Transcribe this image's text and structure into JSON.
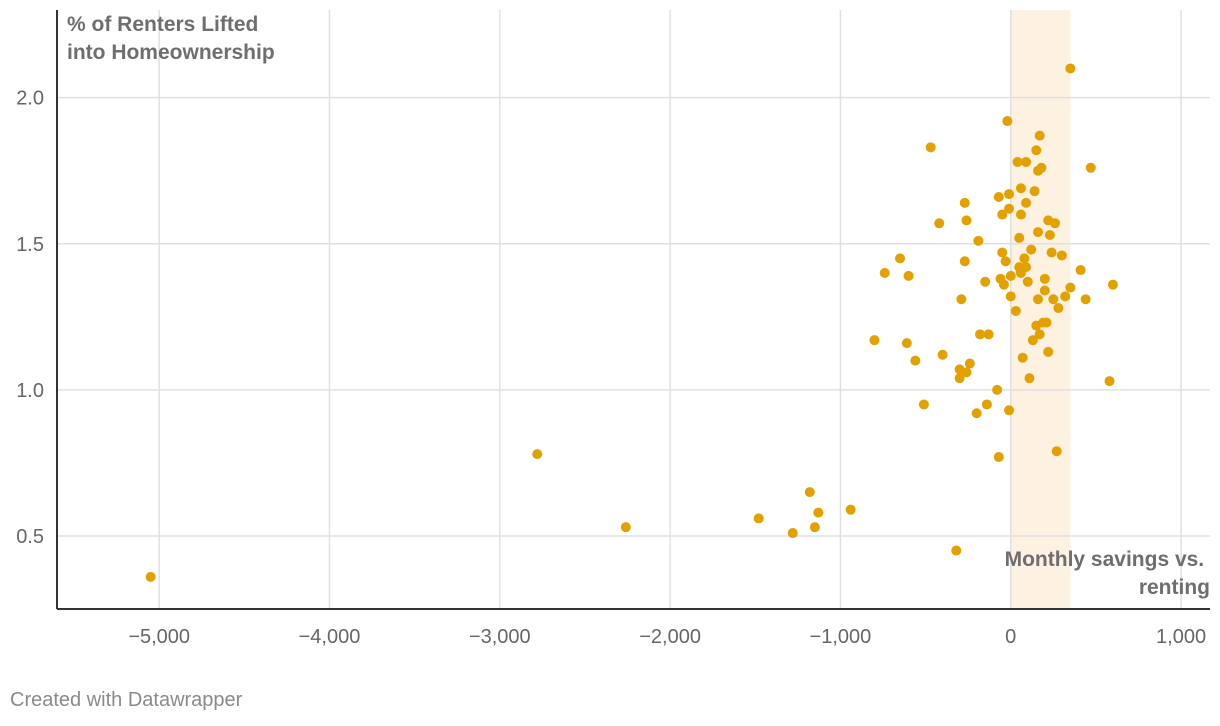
{
  "chart_data": {
    "type": "scatter",
    "ylabel": [
      "% of Renters Lifted",
      "into Homeownership"
    ],
    "xlabel": [
      "Monthly savings vs.",
      "renting"
    ],
    "xlim": [
      -5600,
      1170
    ],
    "ylim": [
      0.25,
      2.3
    ],
    "x_ticks": [
      -5000,
      -4000,
      -3000,
      -2000,
      -1000,
      0,
      1000
    ],
    "x_tick_labels": [
      "−5,000",
      "−4,000",
      "−3,000",
      "−2,000",
      "−1,000",
      "0",
      "1,000"
    ],
    "y_ticks": [
      0.5,
      1.0,
      1.5,
      2.0
    ],
    "y_tick_labels": [
      "0.5",
      "1.0",
      "1.5",
      "2.0"
    ],
    "grid": true,
    "highlight_band": {
      "x_from": 0,
      "x_to": 350
    },
    "colors": {
      "points": "#e3a100",
      "band": "#fdf1e2",
      "grid": "#e0e0e0",
      "axis": "#333333"
    },
    "points": [
      [
        -5050,
        0.36
      ],
      [
        -2780,
        0.78
      ],
      [
        -2260,
        0.53
      ],
      [
        -1480,
        0.56
      ],
      [
        -1280,
        0.51
      ],
      [
        -1180,
        0.65
      ],
      [
        -1150,
        0.53
      ],
      [
        -1130,
        0.58
      ],
      [
        -940,
        0.59
      ],
      [
        -320,
        0.45
      ],
      [
        -800,
        1.17
      ],
      [
        -740,
        1.4
      ],
      [
        -650,
        1.45
      ],
      [
        -600,
        1.39
      ],
      [
        -610,
        1.16
      ],
      [
        -560,
        1.1
      ],
      [
        -510,
        0.95
      ],
      [
        -470,
        1.83
      ],
      [
        -420,
        1.57
      ],
      [
        -400,
        1.12
      ],
      [
        -300,
        1.07
      ],
      [
        -300,
        1.04
      ],
      [
        -290,
        1.31
      ],
      [
        -270,
        1.64
      ],
      [
        -270,
        1.44
      ],
      [
        -260,
        1.58
      ],
      [
        -260,
        1.06
      ],
      [
        -240,
        1.09
      ],
      [
        -200,
        0.92
      ],
      [
        -190,
        1.51
      ],
      [
        -180,
        1.19
      ],
      [
        -150,
        1.37
      ],
      [
        -140,
        0.95
      ],
      [
        -130,
        1.19
      ],
      [
        -80,
        1.0
      ],
      [
        -70,
        1.66
      ],
      [
        -70,
        0.77
      ],
      [
        -60,
        1.38
      ],
      [
        -50,
        1.6
      ],
      [
        -50,
        1.47
      ],
      [
        -40,
        1.36
      ],
      [
        -30,
        1.44
      ],
      [
        -20,
        1.92
      ],
      [
        -10,
        1.62
      ],
      [
        -10,
        1.67
      ],
      [
        0,
        1.32
      ],
      [
        0,
        1.39
      ],
      [
        -10,
        0.93
      ],
      [
        40,
        1.78
      ],
      [
        30,
        1.27
      ],
      [
        50,
        1.52
      ],
      [
        50,
        1.42
      ],
      [
        60,
        1.4
      ],
      [
        60,
        1.6
      ],
      [
        60,
        1.69
      ],
      [
        70,
        1.11
      ],
      [
        80,
        1.45
      ],
      [
        90,
        1.78
      ],
      [
        90,
        1.64
      ],
      [
        90,
        1.42
      ],
      [
        100,
        1.37
      ],
      [
        110,
        1.04
      ],
      [
        120,
        1.48
      ],
      [
        130,
        1.17
      ],
      [
        140,
        1.68
      ],
      [
        150,
        1.22
      ],
      [
        150,
        1.82
      ],
      [
        160,
        1.75
      ],
      [
        160,
        1.54
      ],
      [
        160,
        1.31
      ],
      [
        170,
        1.87
      ],
      [
        170,
        1.19
      ],
      [
        180,
        1.76
      ],
      [
        190,
        1.23
      ],
      [
        200,
        1.38
      ],
      [
        200,
        1.34
      ],
      [
        210,
        1.23
      ],
      [
        220,
        1.58
      ],
      [
        220,
        1.13
      ],
      [
        230,
        1.53
      ],
      [
        240,
        1.47
      ],
      [
        250,
        1.31
      ],
      [
        260,
        1.57
      ],
      [
        270,
        0.79
      ],
      [
        280,
        1.28
      ],
      [
        300,
        1.46
      ],
      [
        320,
        1.32
      ],
      [
        350,
        2.1
      ],
      [
        350,
        1.35
      ],
      [
        410,
        1.41
      ],
      [
        440,
        1.31
      ],
      [
        470,
        1.76
      ],
      [
        580,
        1.03
      ],
      [
        600,
        1.36
      ]
    ]
  },
  "footer": "Created with Datawrapper"
}
